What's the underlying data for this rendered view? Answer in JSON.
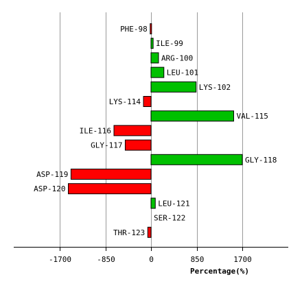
{
  "chart_data": {
    "type": "bar",
    "orientation": "horizontal",
    "title": "",
    "xlabel": "Percentage(%)",
    "ylabel": "",
    "xlim": [
      -2575,
      2575
    ],
    "xticks": [
      -1700,
      -850,
      0,
      850,
      1700
    ],
    "grid": true,
    "positive_color": "#00c000",
    "negative_color": "#ff0000",
    "categories": [
      "PHE-98",
      "ILE-99",
      "ARG-100",
      "LEU-101",
      "LYS-102",
      "LYS-114",
      "VAL-115",
      "ILE-116",
      "GLY-117",
      "GLY-118",
      "ASP-119",
      "ASP-120",
      "LEU-121",
      "SER-122",
      "THR-123"
    ],
    "values": [
      -15,
      40,
      140,
      240,
      840,
      -140,
      1540,
      -690,
      -480,
      1700,
      -1490,
      -1540,
      80,
      0,
      -60
    ]
  }
}
